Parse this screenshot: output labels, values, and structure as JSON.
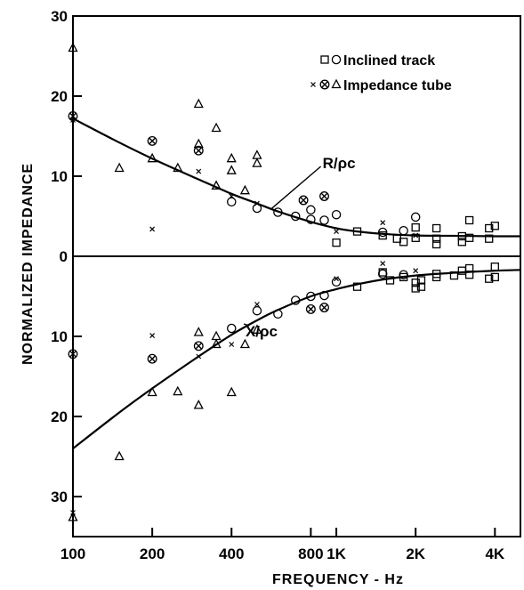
{
  "chart_data": {
    "type": "scatter",
    "title": "",
    "xlabel": "FREQUENCY - Hz",
    "ylabel": "NORMALIZED IMPEDANCE",
    "x_scale": "log",
    "xlim": [
      100,
      5000
    ],
    "ylim": [
      -35,
      30
    ],
    "x_ticks": [
      {
        "value": 100,
        "label": "100"
      },
      {
        "value": 200,
        "label": "200"
      },
      {
        "value": 400,
        "label": "400"
      },
      {
        "value": 800,
        "label": "800"
      },
      {
        "value": 1000,
        "label": "1K"
      },
      {
        "value": 2000,
        "label": "2K"
      },
      {
        "value": 4000,
        "label": "4K"
      }
    ],
    "y_ticks": [
      {
        "value": 30,
        "label": "30"
      },
      {
        "value": 20,
        "label": "20"
      },
      {
        "value": 10,
        "label": "10"
      },
      {
        "value": 0,
        "label": "0"
      },
      {
        "value": -10,
        "label": "10"
      },
      {
        "value": -20,
        "label": "20"
      },
      {
        "value": -30,
        "label": "30"
      }
    ],
    "legend": {
      "placement": "top-right",
      "entries": [
        {
          "symbols": [
            "square",
            "circle"
          ],
          "label": "Inclined track"
        },
        {
          "symbols": [
            "x",
            "circle-x",
            "triangle"
          ],
          "label": "Impedance tube"
        }
      ]
    },
    "annotations": [
      {
        "text": "R/ρc",
        "x": 1020,
        "y": 11
      },
      {
        "text": "X/ρc",
        "x": 520,
        "y": -10
      }
    ],
    "curves": [
      {
        "name": "R/ρc",
        "x": [
          100,
          150,
          200,
          300,
          400,
          500,
          600,
          800,
          1000,
          1200,
          1500,
          2000,
          3000,
          4000,
          5000
        ],
        "y": [
          17.2,
          14.2,
          12.2,
          9.6,
          7.8,
          6.6,
          5.6,
          4.3,
          3.5,
          3.1,
          2.8,
          2.6,
          2.55,
          2.5,
          2.5
        ]
      },
      {
        "name": "X/ρc",
        "x": [
          100,
          150,
          200,
          300,
          400,
          500,
          600,
          800,
          1000,
          1200,
          1500,
          2000,
          3000,
          4000,
          5000
        ],
        "y": [
          -24,
          -19.5,
          -16.5,
          -12.5,
          -9.8,
          -8.0,
          -6.7,
          -5.0,
          -4.1,
          -3.5,
          -2.9,
          -2.4,
          -2.0,
          -1.8,
          -1.7
        ]
      }
    ],
    "series": [
      {
        "name": "Inclined track",
        "marker": "square",
        "points": [
          [
            1000,
            1.7
          ],
          [
            1200,
            3.1
          ],
          [
            1500,
            2.6
          ],
          [
            1700,
            2.2
          ],
          [
            1800,
            1.8
          ],
          [
            2000,
            2.3
          ],
          [
            2000,
            3.6
          ],
          [
            2400,
            2.2
          ],
          [
            2400,
            3.5
          ],
          [
            2400,
            1.5
          ],
          [
            3000,
            2.5
          ],
          [
            3000,
            1.8
          ],
          [
            3200,
            4.5
          ],
          [
            3200,
            2.3
          ],
          [
            3800,
            3.5
          ],
          [
            3800,
            2.2
          ],
          [
            4000,
            3.8
          ],
          [
            1200,
            -3.8
          ],
          [
            1500,
            -2.0
          ],
          [
            1600,
            -3.0
          ],
          [
            1800,
            -2.6
          ],
          [
            2000,
            -3.3
          ],
          [
            2000,
            -4.0
          ],
          [
            2100,
            -3.0
          ],
          [
            2100,
            -3.8
          ],
          [
            2400,
            -2.2
          ],
          [
            2400,
            -2.6
          ],
          [
            2800,
            -2.4
          ],
          [
            3000,
            -1.8
          ],
          [
            3200,
            -1.5
          ],
          [
            3200,
            -2.3
          ],
          [
            3800,
            -2.8
          ],
          [
            4000,
            -1.3
          ],
          [
            4000,
            -2.6
          ]
        ]
      },
      {
        "name": "Inclined track",
        "marker": "circle",
        "points": [
          [
            400,
            6.8
          ],
          [
            500,
            6.0
          ],
          [
            600,
            5.5
          ],
          [
            700,
            5.0
          ],
          [
            800,
            4.6
          ],
          [
            800,
            5.8
          ],
          [
            900,
            4.5
          ],
          [
            1000,
            5.2
          ],
          [
            1500,
            3.0
          ],
          [
            1800,
            3.2
          ],
          [
            2000,
            4.9
          ],
          [
            400,
            -9.0
          ],
          [
            500,
            -6.8
          ],
          [
            600,
            -7.2
          ],
          [
            700,
            -5.5
          ],
          [
            800,
            -5.0
          ],
          [
            900,
            -4.9
          ],
          [
            1000,
            -3.2
          ],
          [
            1500,
            -2.2
          ],
          [
            1800,
            -2.3
          ]
        ]
      },
      {
        "name": "Impedance tube",
        "marker": "x",
        "points": [
          [
            100,
            17.0
          ],
          [
            200,
            3.4
          ],
          [
            300,
            10.6
          ],
          [
            400,
            7.5
          ],
          [
            500,
            6.6
          ],
          [
            1000,
            3.1
          ],
          [
            1500,
            4.2
          ],
          [
            2000,
            2.6
          ],
          [
            100,
            -32.0
          ],
          [
            200,
            -9.9
          ],
          [
            300,
            -12.5
          ],
          [
            400,
            -11.0
          ],
          [
            500,
            -6.0
          ],
          [
            1000,
            -2.8
          ],
          [
            1500,
            -0.9
          ],
          [
            2000,
            -1.8
          ]
        ]
      },
      {
        "name": "Impedance tube",
        "marker": "circle-x",
        "points": [
          [
            100,
            17.5
          ],
          [
            200,
            14.4
          ],
          [
            300,
            13.2
          ],
          [
            750,
            7.0
          ],
          [
            900,
            7.5
          ],
          [
            100,
            -12.2
          ],
          [
            200,
            -12.8
          ],
          [
            300,
            -11.2
          ],
          [
            800,
            -6.6
          ],
          [
            900,
            -6.4
          ]
        ]
      },
      {
        "name": "Impedance tube",
        "marker": "triangle",
        "points": [
          [
            100,
            26.0
          ],
          [
            150,
            11.0
          ],
          [
            200,
            12.2
          ],
          [
            250,
            11.0
          ],
          [
            300,
            19.0
          ],
          [
            300,
            14.0
          ],
          [
            350,
            8.8
          ],
          [
            350,
            16.0
          ],
          [
            400,
            12.2
          ],
          [
            400,
            10.7
          ],
          [
            450,
            8.2
          ],
          [
            500,
            12.6
          ],
          [
            500,
            11.6
          ],
          [
            100,
            -32.6
          ],
          [
            150,
            -25.0
          ],
          [
            200,
            -17.0
          ],
          [
            250,
            -16.9
          ],
          [
            300,
            -9.5
          ],
          [
            300,
            -18.6
          ],
          [
            350,
            -10.0
          ],
          [
            350,
            -11.0
          ],
          [
            400,
            -17.0
          ],
          [
            450,
            -11.0
          ],
          [
            500,
            -9.2
          ]
        ]
      }
    ]
  }
}
